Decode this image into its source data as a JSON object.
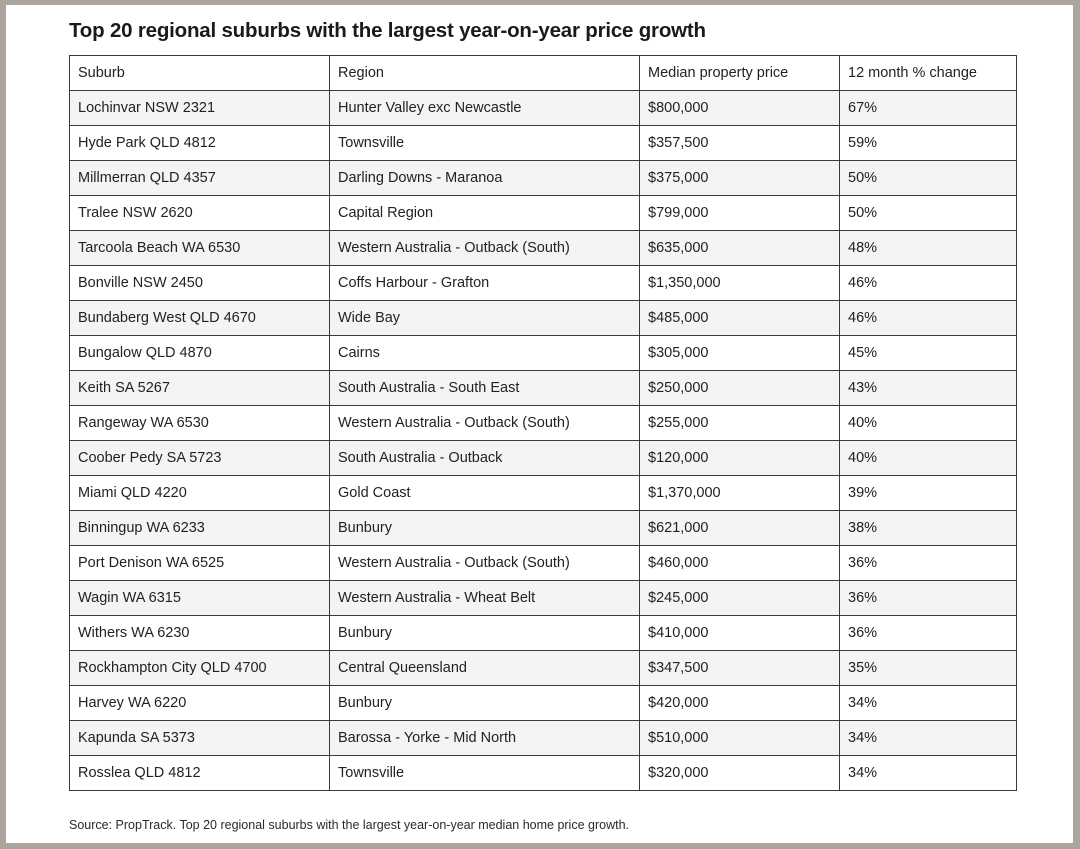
{
  "title": "Top 20 regional suburbs with the largest year-on-year price growth",
  "table": {
    "headers": [
      "Suburb",
      "Region",
      "Median property price",
      "12 month % change"
    ],
    "rows": [
      [
        "Lochinvar NSW 2321",
        "Hunter Valley exc Newcastle",
        "$800,000",
        "67%"
      ],
      [
        "Hyde Park QLD 4812",
        "Townsville",
        "$357,500",
        "59%"
      ],
      [
        "Millmerran QLD 4357",
        "Darling Downs - Maranoa",
        "$375,000",
        "50%"
      ],
      [
        "Tralee NSW 2620",
        "Capital Region",
        "$799,000",
        "50%"
      ],
      [
        "Tarcoola Beach WA 6530",
        "Western Australia - Outback (South)",
        "$635,000",
        "48%"
      ],
      [
        "Bonville NSW 2450",
        "Coffs Harbour - Grafton",
        "$1,350,000",
        "46%"
      ],
      [
        "Bundaberg West QLD 4670",
        "Wide Bay",
        "$485,000",
        "46%"
      ],
      [
        "Bungalow QLD 4870",
        "Cairns",
        "$305,000",
        "45%"
      ],
      [
        "Keith SA 5267",
        "South Australia - South East",
        "$250,000",
        "43%"
      ],
      [
        "Rangeway WA 6530",
        "Western Australia - Outback (South)",
        "$255,000",
        "40%"
      ],
      [
        "Coober Pedy SA 5723",
        "South Australia - Outback",
        "$120,000",
        "40%"
      ],
      [
        "Miami QLD 4220",
        "Gold Coast",
        "$1,370,000",
        "39%"
      ],
      [
        "Binningup WA 6233",
        "Bunbury",
        "$621,000",
        "38%"
      ],
      [
        "Port Denison WA 6525",
        "Western Australia - Outback (South)",
        "$460,000",
        "36%"
      ],
      [
        "Wagin WA 6315",
        "Western Australia - Wheat Belt",
        "$245,000",
        "36%"
      ],
      [
        "Withers WA 6230",
        "Bunbury",
        "$410,000",
        "36%"
      ],
      [
        "Rockhampton City QLD 4700",
        "Central Queensland",
        "$347,500",
        "35%"
      ],
      [
        "Harvey WA 6220",
        "Bunbury",
        "$420,000",
        "34%"
      ],
      [
        "Kapunda SA 5373",
        "Barossa - Yorke - Mid North",
        "$510,000",
        "34%"
      ],
      [
        "Rosslea QLD 4812",
        "Townsville",
        "$320,000",
        "34%"
      ]
    ]
  },
  "source": "Source: PropTrack. Top 20 regional suburbs with the largest year-on-year median home price growth."
}
